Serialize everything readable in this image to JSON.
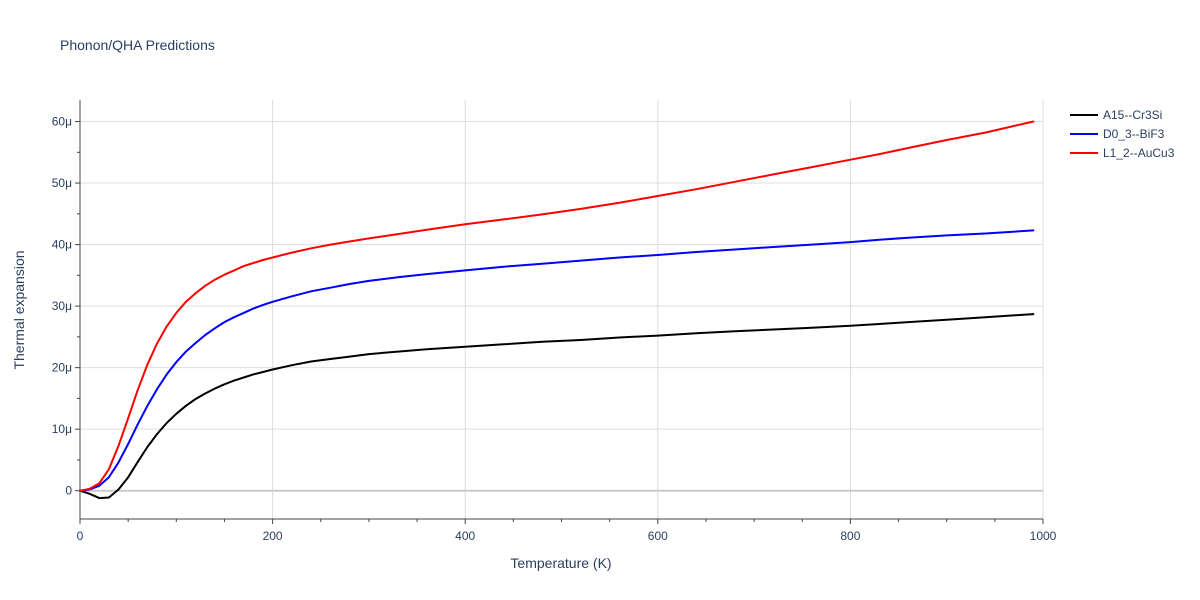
{
  "chart_data": {
    "type": "line",
    "title": "Phonon/QHA Predictions",
    "xlabel": "Temperature (K)",
    "ylabel": "Thermal expansion",
    "xlim": [
      0,
      1000
    ],
    "ylim": [
      -4.6e-06,
      6.35e-05
    ],
    "x_ticks": [
      0,
      200,
      400,
      600,
      800,
      1000
    ],
    "x_tick_labels": [
      "0",
      "200",
      "400",
      "600",
      "800",
      "1000"
    ],
    "y_ticks": [
      0,
      1e-05,
      2e-05,
      3e-05,
      4e-05,
      5e-05,
      6e-05
    ],
    "y_tick_labels": [
      "0",
      "10μ",
      "20μ",
      "30μ",
      "40μ",
      "50μ",
      "60μ"
    ],
    "grid": true,
    "legend_position": "top-right",
    "series": [
      {
        "name": "A15--Cr3Si",
        "color": "#000000",
        "x": [
          0,
          10,
          20,
          30,
          40,
          50,
          60,
          70,
          80,
          90,
          100,
          110,
          120,
          130,
          140,
          150,
          160,
          170,
          180,
          190,
          200,
          220,
          240,
          260,
          280,
          300,
          330,
          360,
          400,
          440,
          480,
          520,
          560,
          600,
          640,
          680,
          720,
          760,
          800,
          830,
          860,
          900,
          940,
          990
        ],
        "y": [
          0,
          -5e-07,
          -1.2e-06,
          -1.1e-06,
          2e-07,
          2.2e-06,
          4.7e-06,
          7.1e-06,
          9.2e-06,
          1.1e-05,
          1.25e-05,
          1.38e-05,
          1.49e-05,
          1.58e-05,
          1.66e-05,
          1.73e-05,
          1.79e-05,
          1.84e-05,
          1.89e-05,
          1.93e-05,
          1.97e-05,
          2.04e-05,
          2.1e-05,
          2.14e-05,
          2.18e-05,
          2.22e-05,
          2.26e-05,
          2.3e-05,
          2.34e-05,
          2.38e-05,
          2.42e-05,
          2.45e-05,
          2.49e-05,
          2.52e-05,
          2.56e-05,
          2.59e-05,
          2.62e-05,
          2.65e-05,
          2.68e-05,
          2.71e-05,
          2.74e-05,
          2.78e-05,
          2.82e-05,
          2.87e-05
        ]
      },
      {
        "name": "D0_3--BiF3",
        "color": "#0000ff",
        "x": [
          0,
          10,
          20,
          30,
          40,
          50,
          60,
          70,
          80,
          90,
          100,
          110,
          120,
          130,
          140,
          150,
          160,
          170,
          180,
          190,
          200,
          220,
          240,
          260,
          280,
          300,
          330,
          360,
          400,
          440,
          480,
          520,
          560,
          600,
          640,
          680,
          720,
          760,
          800,
          830,
          860,
          900,
          940,
          990
        ],
        "y": [
          0,
          2e-07,
          8e-07,
          2.2e-06,
          4.6e-06,
          7.6e-06,
          1.08e-05,
          1.38e-05,
          1.65e-05,
          1.89e-05,
          2.09e-05,
          2.26e-05,
          2.4e-05,
          2.53e-05,
          2.64e-05,
          2.74e-05,
          2.82e-05,
          2.89e-05,
          2.96e-05,
          3.02e-05,
          3.07e-05,
          3.16e-05,
          3.24e-05,
          3.3e-05,
          3.36e-05,
          3.41e-05,
          3.47e-05,
          3.52e-05,
          3.58e-05,
          3.64e-05,
          3.69e-05,
          3.74e-05,
          3.79e-05,
          3.83e-05,
          3.88e-05,
          3.92e-05,
          3.96e-05,
          4e-05,
          4.04e-05,
          4.08e-05,
          4.11e-05,
          4.15e-05,
          4.18e-05,
          4.23e-05
        ]
      },
      {
        "name": "L1_2--AuCu3",
        "color": "#ff0000",
        "x": [
          0,
          10,
          20,
          30,
          40,
          50,
          60,
          70,
          80,
          90,
          100,
          110,
          120,
          130,
          140,
          150,
          160,
          170,
          180,
          190,
          200,
          220,
          240,
          260,
          280,
          300,
          330,
          360,
          400,
          440,
          480,
          520,
          560,
          600,
          640,
          680,
          720,
          760,
          800,
          830,
          860,
          900,
          940,
          990
        ],
        "y": [
          0,
          3e-07,
          1.2e-06,
          3.5e-06,
          7.3e-06,
          1.18e-05,
          1.64e-05,
          2.05e-05,
          2.39e-05,
          2.67e-05,
          2.89e-05,
          3.07e-05,
          3.21e-05,
          3.33e-05,
          3.43e-05,
          3.51e-05,
          3.58e-05,
          3.65e-05,
          3.7e-05,
          3.75e-05,
          3.79e-05,
          3.87e-05,
          3.94e-05,
          4e-05,
          4.05e-05,
          4.1e-05,
          4.17e-05,
          4.24e-05,
          4.33e-05,
          4.41e-05,
          4.49e-05,
          4.58e-05,
          4.68e-05,
          4.79e-05,
          4.9e-05,
          5.02e-05,
          5.14e-05,
          5.26e-05,
          5.38e-05,
          5.47e-05,
          5.57e-05,
          5.7e-05,
          5.82e-05,
          6e-05
        ]
      }
    ]
  }
}
